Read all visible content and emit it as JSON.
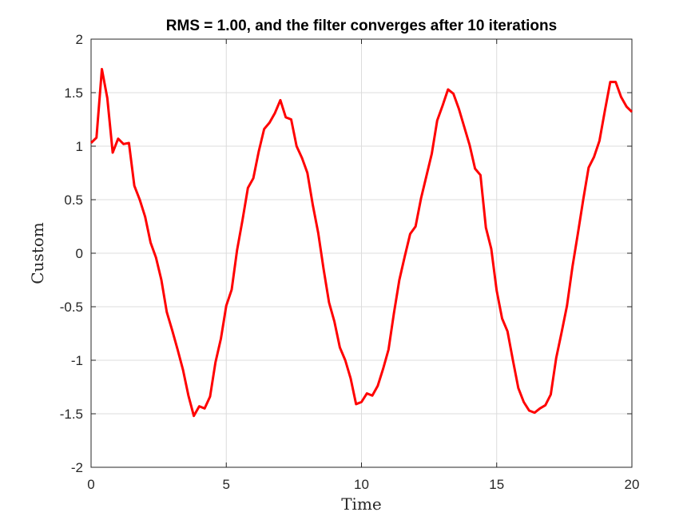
{
  "chart_data": {
    "type": "line",
    "title": "RMS = 1.00, and the filter converges after 10 iterations",
    "xlabel": "Time",
    "ylabel": "Custom",
    "xlim": [
      0,
      20
    ],
    "ylim": [
      -2,
      2
    ],
    "xticks": [
      0,
      5,
      10,
      15,
      20
    ],
    "xtick_labels": [
      "0",
      "5",
      "10",
      "15",
      "20"
    ],
    "yticks": [
      -2,
      -1.5,
      -1,
      -0.5,
      0,
      0.5,
      1,
      1.5,
      2
    ],
    "ytick_labels": [
      "-2",
      "-1.5",
      "-1",
      "-0.5",
      "0",
      "0.5",
      "1",
      "1.5",
      "2"
    ],
    "grid": true,
    "series": [
      {
        "color": "#ff0000",
        "x": [
          0,
          0.2,
          0.4,
          0.6,
          0.8,
          1.0,
          1.2,
          1.4,
          1.6,
          1.8,
          2.0,
          2.2,
          2.4,
          2.6,
          2.8,
          3.0,
          3.2,
          3.4,
          3.6,
          3.8,
          4.0,
          4.2,
          4.4,
          4.6,
          4.8,
          5.0,
          5.2,
          5.4,
          5.6,
          5.8,
          6.0,
          6.2,
          6.4,
          6.6,
          6.8,
          7.0,
          7.2,
          7.4,
          7.6,
          7.8,
          8.0,
          8.2,
          8.4,
          8.6,
          8.8,
          9.0,
          9.2,
          9.4,
          9.6,
          9.8,
          10.0,
          10.2,
          10.4,
          10.6,
          10.8,
          11.0,
          11.2,
          11.4,
          11.6,
          11.8,
          12.0,
          12.2,
          12.4,
          12.6,
          12.8,
          13.0,
          13.2,
          13.4,
          13.6,
          13.8,
          14.0,
          14.2,
          14.4,
          14.6,
          14.8,
          15.0,
          15.2,
          15.4,
          15.6,
          15.8,
          16.0,
          16.2,
          16.4,
          16.6,
          16.8,
          17.0,
          17.2,
          17.4,
          17.6,
          17.8,
          18.0,
          18.2,
          18.4,
          18.6,
          18.8,
          19.0,
          19.2,
          19.4,
          19.6,
          19.8,
          20.0
        ],
        "y": [
          1.03,
          1.08,
          1.72,
          1.45,
          0.94,
          1.07,
          1.02,
          1.03,
          0.63,
          0.5,
          0.34,
          0.1,
          -0.04,
          -0.25,
          -0.55,
          -0.72,
          -0.9,
          -1.09,
          -1.33,
          -1.52,
          -1.43,
          -1.45,
          -1.34,
          -1.02,
          -0.8,
          -0.49,
          -0.34,
          0.03,
          0.31,
          0.61,
          0.7,
          0.95,
          1.16,
          1.22,
          1.31,
          1.43,
          1.27,
          1.25,
          1.0,
          0.89,
          0.75,
          0.45,
          0.19,
          -0.15,
          -0.46,
          -0.64,
          -0.88,
          -1.0,
          -1.17,
          -1.41,
          -1.39,
          -1.31,
          -1.33,
          -1.24,
          -1.08,
          -0.9,
          -0.56,
          -0.25,
          -0.03,
          0.18,
          0.25,
          0.51,
          0.72,
          0.93,
          1.24,
          1.38,
          1.53,
          1.49,
          1.35,
          1.18,
          1.01,
          0.79,
          0.73,
          0.24,
          0.04,
          -0.35,
          -0.61,
          -0.73,
          -1.0,
          -1.26,
          -1.39,
          -1.47,
          -1.49,
          -1.45,
          -1.42,
          -1.32,
          -0.98,
          -0.74,
          -0.49,
          -0.13,
          0.18,
          0.5,
          0.8,
          0.9,
          1.05,
          1.33,
          1.6,
          1.6,
          1.46,
          1.37,
          1.32
        ]
      }
    ]
  }
}
